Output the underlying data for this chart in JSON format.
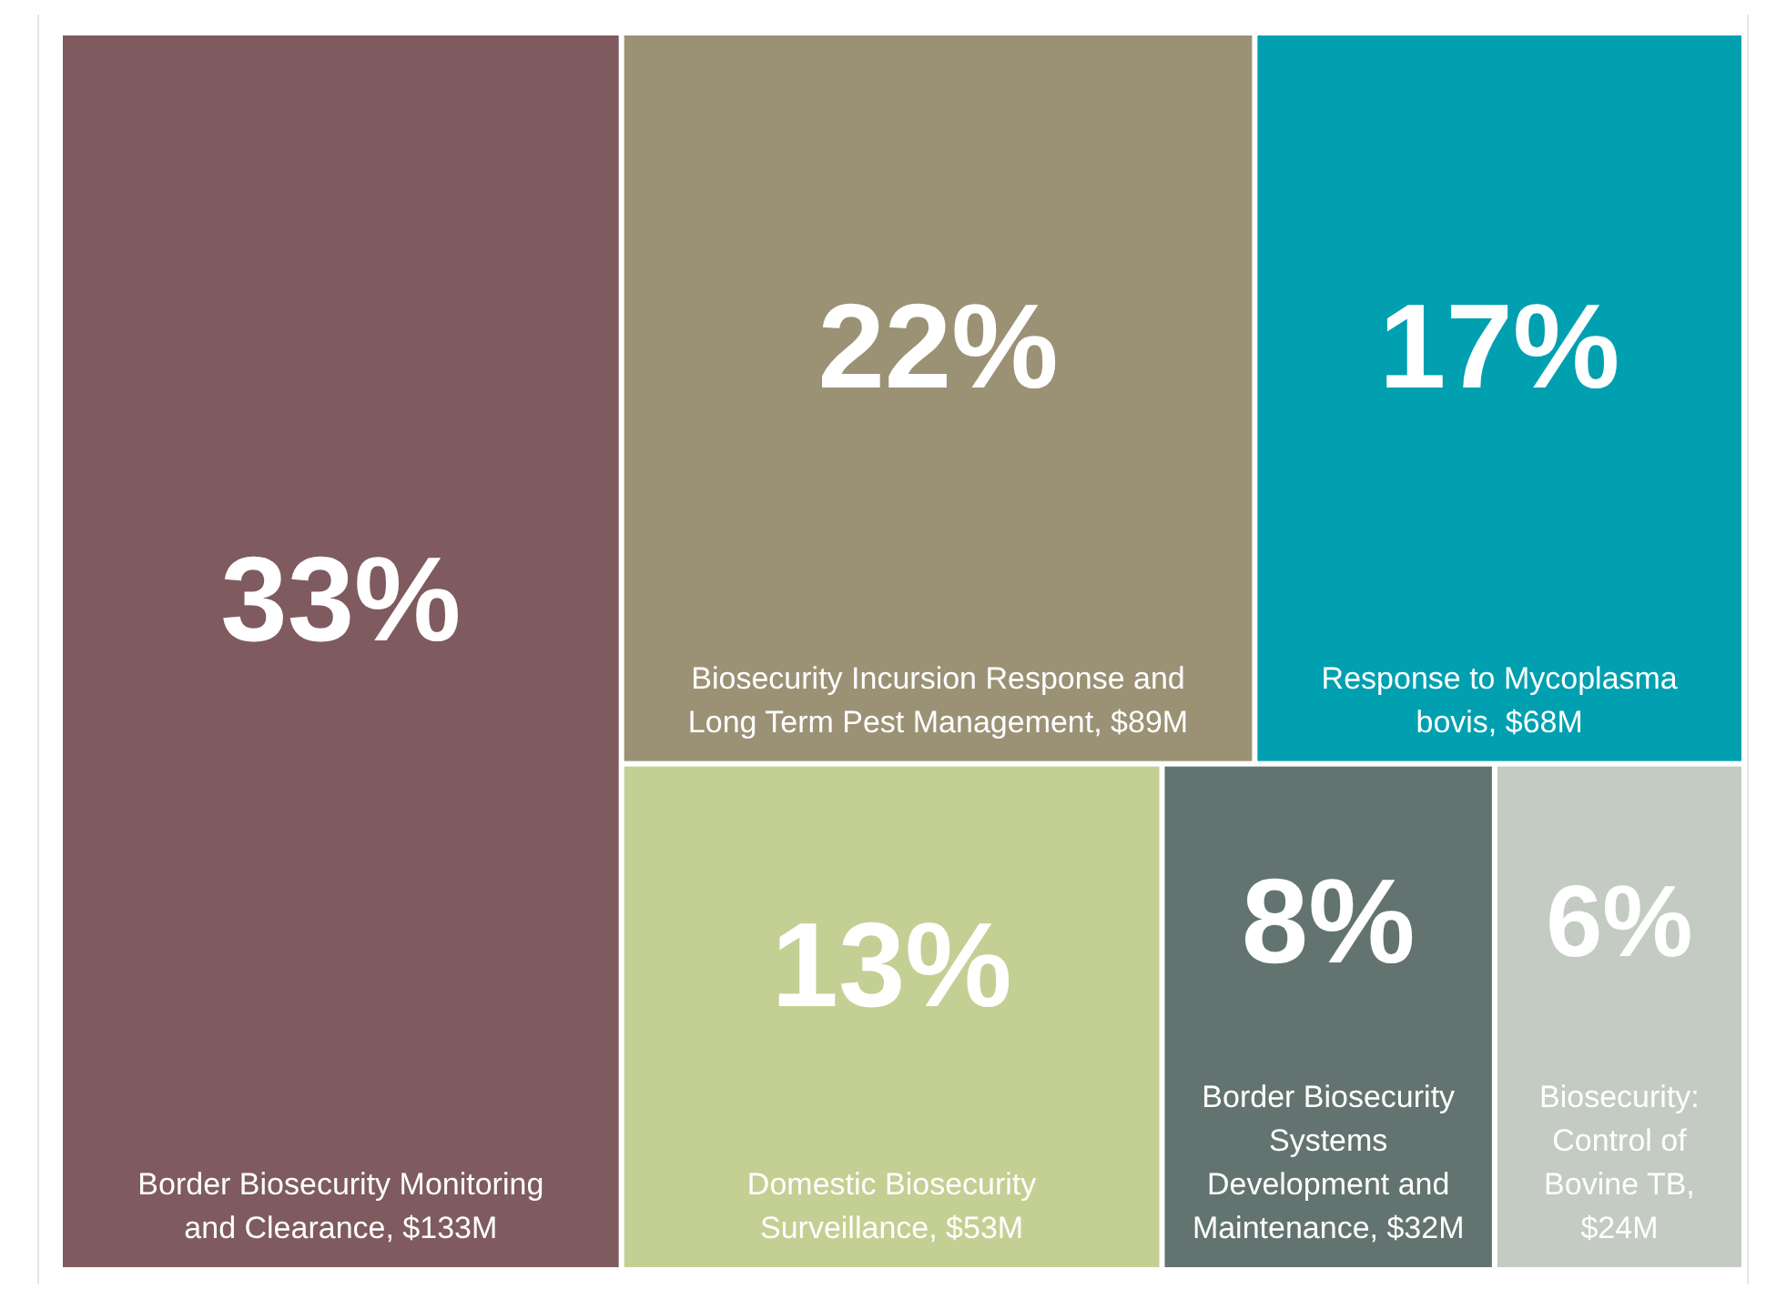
{
  "chart_data": {
    "type": "other",
    "categories": [
      "Border Biosecurity Monitoring and Clearance, $133M",
      "Biosecurity Incursion Response and Long Term Pest Management, $89M",
      "Response to Mycoplasma bovis, $68M",
      "Domestic Biosecurity Surveillance, $53M",
      "Border Biosecurity Systems Development and Maintenance, $32M",
      "Biosecurity: Control of Bovine TB, $24M"
    ],
    "values": [
      33,
      22,
      17,
      13,
      8,
      6
    ],
    "value_labels": [
      "33%",
      "22%",
      "17%",
      "13%",
      "8%",
      "6%"
    ],
    "colors": [
      "#7f5a5e",
      "#9b9175",
      "#00a0b0",
      "#c4cf93",
      "#637470",
      "#c4cbc3"
    ]
  }
}
